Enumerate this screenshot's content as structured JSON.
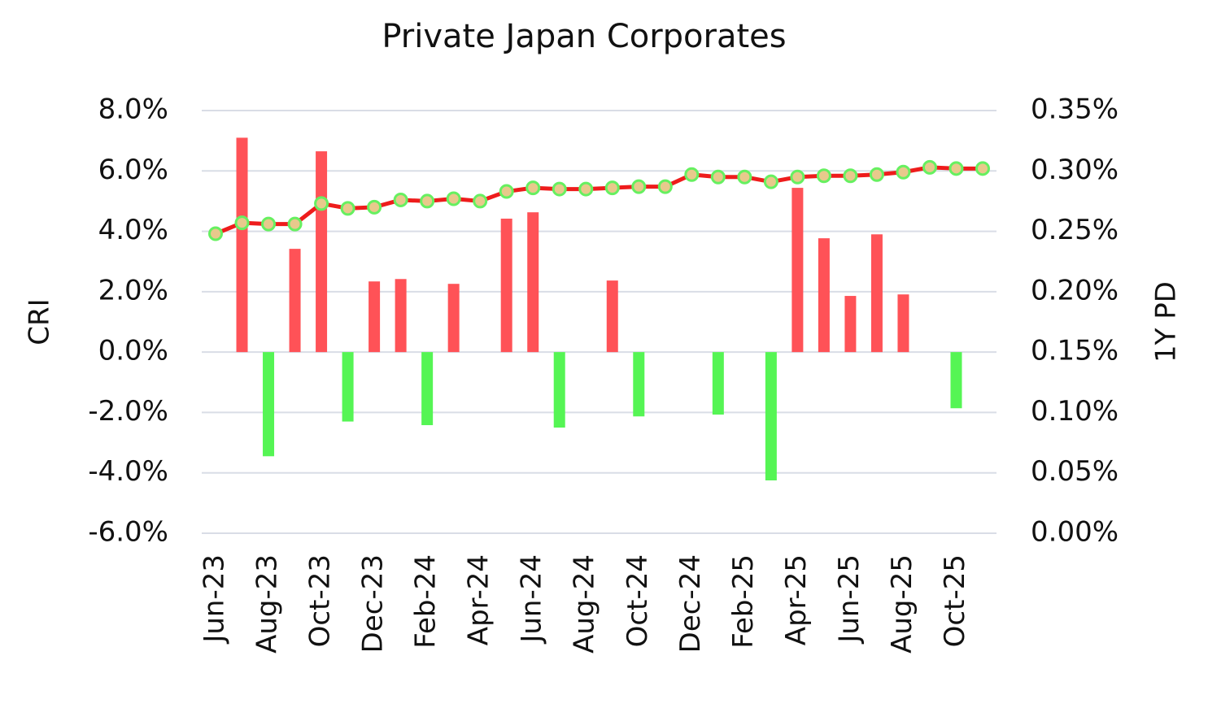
{
  "chart_data": {
    "type": "bar_line",
    "title": "Private Japan Corporates",
    "categories": [
      "Jun-23",
      null,
      "Aug-23",
      null,
      "Oct-23",
      null,
      "Dec-23",
      null,
      "Feb-24",
      null,
      "Apr-24",
      null,
      "Jun-24",
      null,
      "Aug-24",
      null,
      "Oct-24",
      null,
      "Dec-24",
      null,
      "Feb-25",
      null,
      "Apr-25",
      null,
      "Jun-25",
      null,
      "Aug-25",
      null,
      "Oct-25",
      null
    ],
    "y_label": "CRI",
    "y2_label": "1Y PD",
    "ylim": [
      -6,
      8
    ],
    "yticks": [
      {
        "value": -6,
        "label": "-6.0%"
      },
      {
        "value": -4,
        "label": "-4.0%"
      },
      {
        "value": -2,
        "label": "-2.0%"
      },
      {
        "value": 0,
        "label": "0.0%"
      },
      {
        "value": 2,
        "label": "2.0%"
      },
      {
        "value": 4,
        "label": "4.0%"
      },
      {
        "value": 6,
        "label": "6.0%"
      },
      {
        "value": 8,
        "label": "8.0%"
      }
    ],
    "y2lim": [
      0,
      0.35
    ],
    "y2ticks": [
      {
        "value": 0,
        "label": "0.00%"
      },
      {
        "value": 0.05,
        "label": "0.05%"
      },
      {
        "value": 0.1,
        "label": "0.10%"
      },
      {
        "value": 0.15,
        "label": "0.15%"
      },
      {
        "value": 0.2,
        "label": "0.20%"
      },
      {
        "value": 0.25,
        "label": "0.25%"
      },
      {
        "value": 0.3,
        "label": "0.30%"
      },
      {
        "value": 0.35,
        "label": "0.35%"
      }
    ],
    "grid": true,
    "series": [
      {
        "name": "CRI",
        "type": "bar",
        "positive_color": "#ff5257",
        "negative_color": "#55f554",
        "values": [
          null,
          7.1,
          -3.45,
          3.42,
          6.65,
          -2.3,
          2.34,
          2.42,
          -2.42,
          2.26,
          null,
          4.42,
          4.63,
          -2.5,
          null,
          2.37,
          -2.13,
          null,
          null,
          -2.07,
          null,
          -4.25,
          5.44,
          3.77,
          1.86,
          3.9,
          1.91,
          null,
          -1.86,
          null
        ]
      },
      {
        "name": "1Y PD",
        "type": "line",
        "axis": "y2",
        "color": "#ee1c1c",
        "marker_fill": "#e8c98c",
        "marker_edge": "#66f060",
        "values": [
          0.248,
          0.257,
          0.256,
          0.256,
          0.273,
          0.269,
          0.27,
          0.276,
          0.275,
          0.277,
          0.275,
          0.283,
          0.286,
          0.285,
          0.285,
          0.286,
          0.287,
          0.287,
          0.297,
          0.295,
          0.295,
          0.291,
          0.295,
          0.296,
          0.296,
          0.297,
          0.299,
          0.303,
          0.302,
          0.302
        ]
      }
    ]
  }
}
